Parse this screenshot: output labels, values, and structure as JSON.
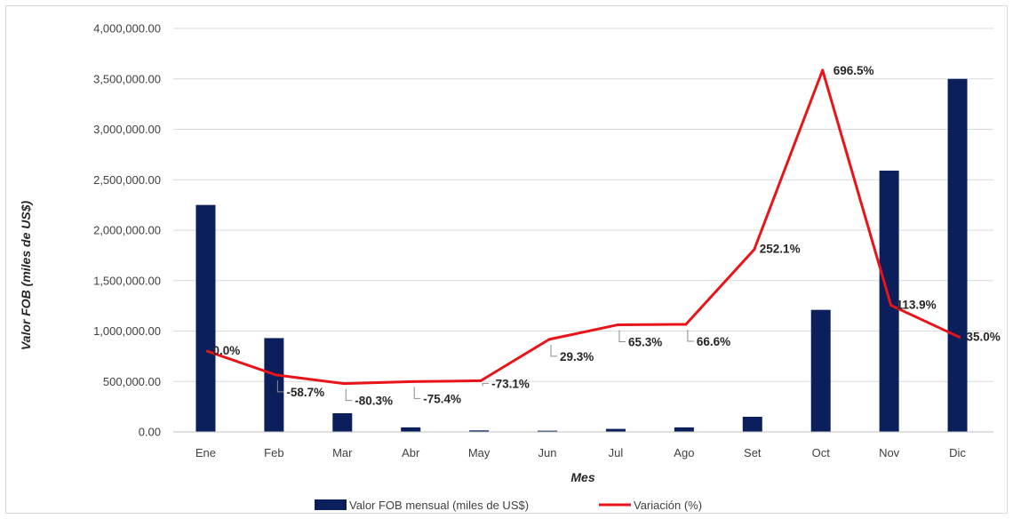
{
  "chart_data": {
    "type": "bar",
    "categories": [
      "Ene",
      "Feb",
      "Mar",
      "Abr",
      "May",
      "Jun",
      "Jul",
      "Ago",
      "Set",
      "Oct",
      "Nov",
      "Dic"
    ],
    "series": [
      {
        "name": "Valor FOB mensual (miles de US$)",
        "type": "bar",
        "axis": "primary",
        "color": "#0b1f5c",
        "values": [
          2250000,
          930000,
          185000,
          45000,
          15000,
          12000,
          30000,
          45000,
          150000,
          1210000,
          2590000,
          3500000
        ]
      },
      {
        "name": "Variación (%)",
        "type": "line",
        "axis": "secondary",
        "color": "#e8141a",
        "values": [
          0.0,
          -58.7,
          -80.3,
          -75.4,
          -73.1,
          29.3,
          65.3,
          66.6,
          252.1,
          696.5,
          113.9,
          35.0
        ],
        "labels": [
          "0.0%",
          "-58.7%",
          "-80.3%",
          "-75.4%",
          "-73.1%",
          "29.3%",
          "65.3%",
          "66.6%",
          "252.1%",
          "696.5%",
          "113.9%",
          "35.0%"
        ]
      }
    ],
    "xlabel": "Mes",
    "ylabel": "Valor FOB  (miles de US$)",
    "ylim": [
      0,
      4000000
    ],
    "yticks": [
      "0.00",
      "500,000.00",
      "1,000,000.00",
      "1,500,000.00",
      "2,000,000.00",
      "2,500,000.00",
      "3,000,000.00",
      "3,500,000.00",
      "4,000,000.00"
    ],
    "secondary_ylim": [
      -200,
      800
    ],
    "secondary_axis_visible": false,
    "grid": true,
    "legend_position": "bottom"
  }
}
